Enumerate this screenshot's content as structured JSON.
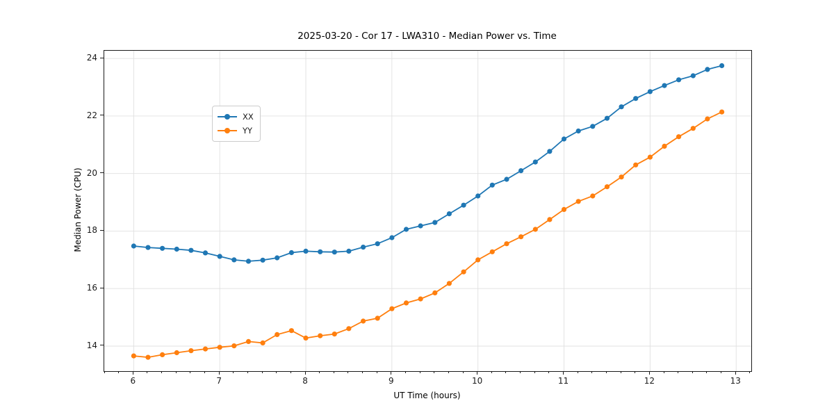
{
  "figure": {
    "title": "2025-03-20 - Cor 17 - LWA310 - Median Power vs. Time",
    "xlabel": "UT Time (hours)",
    "ylabel": "Median Power (CPU)"
  },
  "legend": {
    "position": "upper left",
    "items": [
      {
        "label": "XX",
        "color": "#1f77b4"
      },
      {
        "label": "YY",
        "color": "#ff7f0e"
      }
    ]
  },
  "colors": {
    "series_xx": "#1f77b4",
    "series_yy": "#ff7f0e",
    "grid": "#e0e0e0",
    "spine": "#1a1a1a",
    "background": "#ffffff"
  },
  "chart_data": {
    "type": "line",
    "title": "2025-03-20 - Cor 17 - LWA310 - Median Power vs. Time",
    "xlabel": "UT Time (hours)",
    "ylabel": "Median Power (CPU)",
    "grid": true,
    "legend_position": "upper left",
    "marker": "circle",
    "xlim": [
      5.658,
      13.176
    ],
    "ylim": [
      13.13,
      24.27
    ],
    "xticks": [
      6,
      7,
      8,
      9,
      10,
      11,
      12,
      13
    ],
    "yticks": [
      14,
      16,
      18,
      20,
      22,
      24
    ],
    "x_minor_step": 0.16667,
    "x": [
      6.0,
      6.1667,
      6.3333,
      6.5,
      6.6667,
      6.8333,
      7.0,
      7.1667,
      7.3333,
      7.5,
      7.6667,
      7.8333,
      8.0,
      8.1667,
      8.3333,
      8.5,
      8.6667,
      8.8333,
      9.0,
      9.1667,
      9.3333,
      9.5,
      9.6667,
      9.8333,
      10.0,
      10.1667,
      10.3333,
      10.5,
      10.6667,
      10.8333,
      11.0,
      11.1667,
      11.3333,
      11.5,
      11.6667,
      11.8333,
      12.0,
      12.1667,
      12.3333,
      12.5,
      12.6667,
      12.8333
    ],
    "series": [
      {
        "name": "XX",
        "color": "#1f77b4",
        "values": [
          17.48,
          17.43,
          17.4,
          17.37,
          17.33,
          17.24,
          17.12,
          17.0,
          16.95,
          16.99,
          17.07,
          17.25,
          17.3,
          17.28,
          17.27,
          17.3,
          17.44,
          17.56,
          17.77,
          18.06,
          18.18,
          18.3,
          18.6,
          18.9,
          19.22,
          19.6,
          19.8,
          20.1,
          20.4,
          20.77,
          21.2,
          21.48,
          21.64,
          21.92,
          22.32,
          22.61,
          22.85,
          23.06,
          23.26,
          23.4,
          23.62,
          23.75
        ]
      },
      {
        "name": "YY",
        "color": "#ff7f0e",
        "values": [
          13.66,
          13.61,
          13.7,
          13.77,
          13.84,
          13.9,
          13.96,
          14.01,
          14.16,
          14.11,
          14.4,
          14.54,
          14.28,
          14.36,
          14.42,
          14.61,
          14.87,
          14.97,
          15.3,
          15.5,
          15.64,
          15.85,
          16.18,
          16.58,
          17.0,
          17.28,
          17.56,
          17.8,
          18.06,
          18.4,
          18.75,
          19.03,
          19.22,
          19.54,
          19.88,
          20.3,
          20.57,
          20.95,
          21.28,
          21.57,
          21.9,
          22.14
        ]
      }
    ]
  }
}
